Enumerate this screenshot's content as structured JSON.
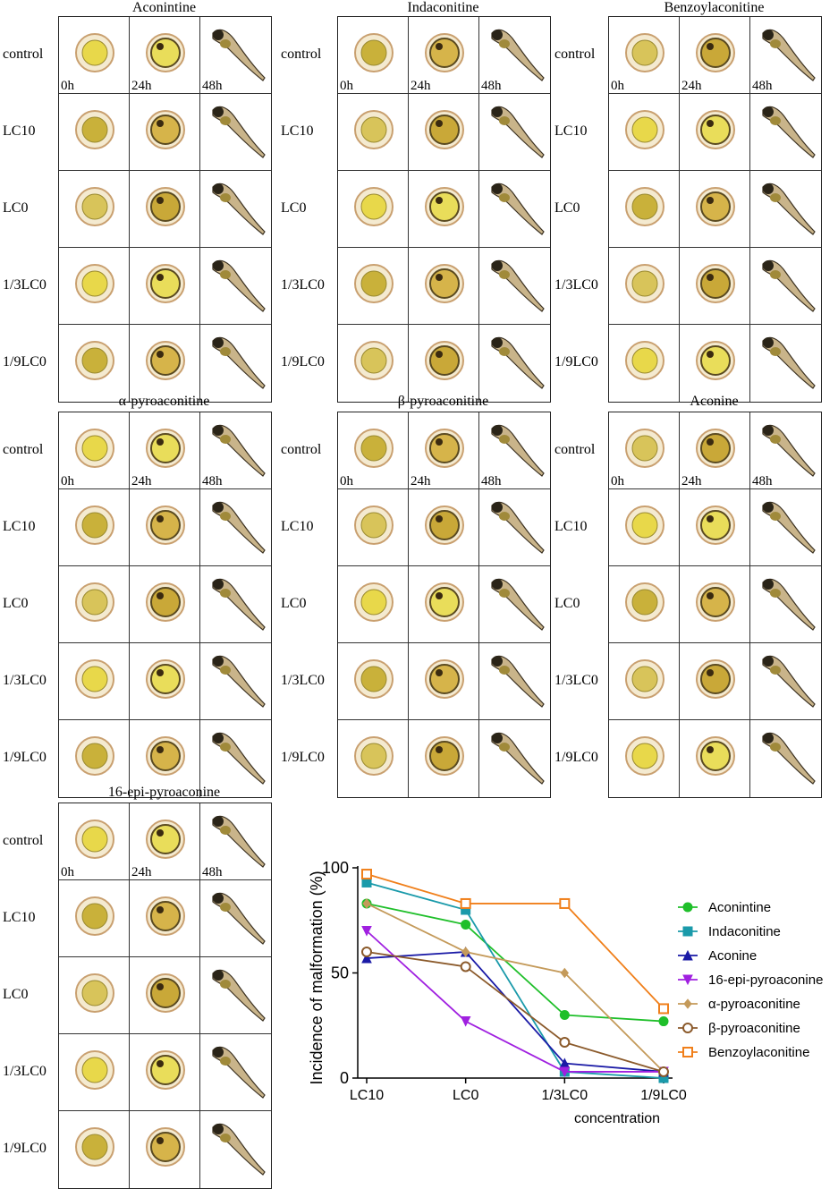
{
  "panels": [
    {
      "title": "Aconintine",
      "rows": [
        "control",
        "LC10",
        "LC0",
        "1/3LC0",
        "1/9LC0"
      ],
      "times": [
        "0h",
        "24h",
        "48h"
      ]
    },
    {
      "title": "Indaconitine",
      "rows": [
        "control",
        "LC10",
        "LC0",
        "1/3LC0",
        "1/9LC0"
      ],
      "times": [
        "0h",
        "24h",
        "48h"
      ]
    },
    {
      "title": "Benzoylaconitine",
      "rows": [
        "control",
        "LC10",
        "LC0",
        "1/3LC0",
        "1/9LC0"
      ],
      "times": [
        "0h",
        "24h",
        "48h"
      ]
    },
    {
      "title": "α-pyroaconitine",
      "rows": [
        "control",
        "LC10",
        "LC0",
        "1/3LC0",
        "1/9LC0"
      ],
      "times": [
        "0h",
        "24h",
        "48h"
      ]
    },
    {
      "title": "β-pyroaconitine",
      "rows": [
        "control",
        "LC10",
        "LC0",
        "1/3LC0",
        "1/9LC0"
      ],
      "times": [
        "0h",
        "24h",
        "48h"
      ]
    },
    {
      "title": "Aconine",
      "rows": [
        "control",
        "LC10",
        "LC0",
        "1/3LC0",
        "1/9LC0"
      ],
      "times": [
        "0h",
        "24h",
        "48h"
      ]
    },
    {
      "title": "16-epi-pyroaconine",
      "rows": [
        "control",
        "LC10",
        "LC0",
        "1/3LC0",
        "1/9LC0"
      ],
      "times": [
        "0h",
        "24h",
        "48h"
      ]
    }
  ],
  "chart_data": {
    "type": "line",
    "title": "",
    "xlabel": "concentration",
    "ylabel": "Incidence of malformation (%)",
    "categories": [
      "LC10",
      "LC0",
      "1/3LC0",
      "1/9LC0"
    ],
    "ylim": [
      0,
      100
    ],
    "yticks": [
      "0",
      "50",
      "100"
    ],
    "legend_position": "right",
    "series": [
      {
        "name": "Aconintine",
        "color": "#1fbf2a",
        "marker": "circle-filled",
        "values": [
          83,
          73,
          30,
          27
        ]
      },
      {
        "name": "Indaconitine",
        "color": "#1a9aaa",
        "marker": "square-filled",
        "values": [
          93,
          80,
          3,
          0
        ]
      },
      {
        "name": "Aconine",
        "color": "#1a1aa6",
        "marker": "triangle-up-filled",
        "values": [
          57,
          60,
          7,
          3
        ]
      },
      {
        "name": "16-epi-pyroaconine",
        "color": "#a020e0",
        "marker": "triangle-down-filled",
        "values": [
          70,
          27,
          3,
          3
        ]
      },
      {
        "name": "α-pyroaconitine",
        "color": "#c49a5a",
        "marker": "diamond-filled",
        "values": [
          83,
          60,
          50,
          3
        ]
      },
      {
        "name": "β-pyroaconitine",
        "color": "#8b5a2b",
        "marker": "circle-open",
        "values": [
          60,
          53,
          17,
          3
        ]
      },
      {
        "name": "Benzoylaconitine",
        "color": "#f07f1a",
        "marker": "square-open",
        "values": [
          97,
          83,
          83,
          33
        ]
      }
    ]
  }
}
